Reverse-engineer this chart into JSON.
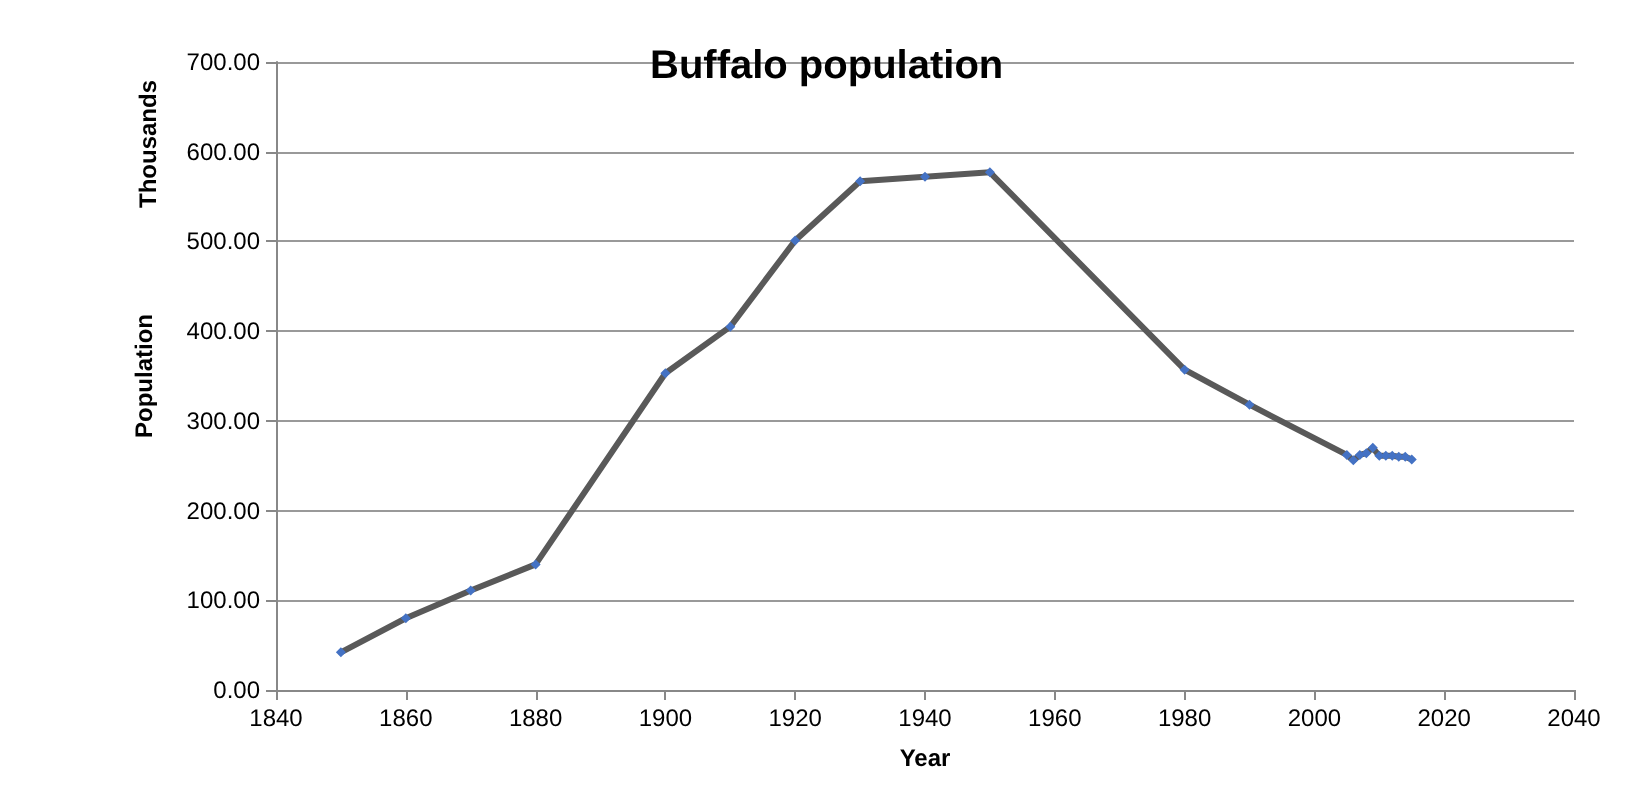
{
  "chart_data": {
    "type": "line",
    "title": "Buffalo population",
    "xlabel": "Year",
    "ylabel": "Population",
    "annotations": [
      "Thousands"
    ],
    "x": [
      1850,
      1860,
      1870,
      1880,
      1900,
      1910,
      1920,
      1930,
      1940,
      1950,
      1980,
      1990,
      2005,
      2006,
      2007,
      2008,
      2009,
      2010,
      2011,
      2012,
      2013,
      2014,
      2015
    ],
    "series": [
      {
        "color": "#4472c4",
        "values": [
          42,
          80,
          111,
          140,
          353,
          405,
          501,
          567,
          572,
          577,
          357,
          318,
          262,
          256,
          262,
          264,
          270,
          261,
          261,
          261,
          260,
          260,
          257
        ]
      }
    ],
    "xlim": [
      1840,
      2040
    ],
    "xticks": [
      1840,
      1860,
      1880,
      1900,
      1920,
      1940,
      1960,
      1980,
      2000,
      2020,
      2040
    ],
    "ylim": [
      0,
      700
    ],
    "yticks": [
      {
        "value": 0,
        "label": "0.00"
      },
      {
        "value": 100,
        "label": "100.00"
      },
      {
        "value": 200,
        "label": "200.00"
      },
      {
        "value": 300,
        "label": "300.00"
      },
      {
        "value": 400,
        "label": "400.00"
      },
      {
        "value": 500,
        "label": "500.00"
      },
      {
        "value": 600,
        "label": "600.00"
      },
      {
        "value": 700,
        "label": "700.00"
      }
    ],
    "grid": "y",
    "marker": "diamond",
    "line_style": "solid"
  }
}
